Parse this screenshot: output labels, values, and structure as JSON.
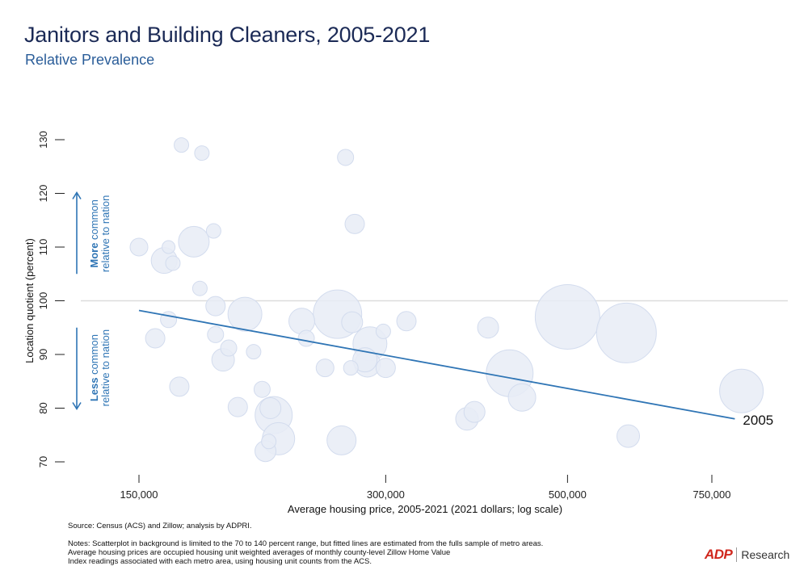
{
  "header": {
    "title": "Janitors and Building Cleaners, 2005-2021",
    "subtitle": "Relative Prevalence"
  },
  "chart_data": {
    "type": "scatter",
    "xlabel": "Average housing price, 2005-2021 (2021 dollars; log scale)",
    "ylabel": "Location quotient (percent)",
    "x_scale": "log",
    "xlim": [
      120000,
      950000
    ],
    "ylim": [
      68,
      134
    ],
    "x_ticks": [
      150000,
      300000,
      500000,
      750000
    ],
    "x_tick_labels": [
      "150,000",
      "300,000",
      "500,000",
      "750,000"
    ],
    "y_ticks": [
      70,
      80,
      90,
      100,
      110,
      120,
      130
    ],
    "y_tick_labels": [
      "70",
      "80",
      "90",
      "100",
      "110",
      "120",
      "130"
    ],
    "reference_line_y": 100,
    "grid": false,
    "annotations": {
      "more": {
        "bold": "More",
        "rest": "common",
        "line2": "relative to nation"
      },
      "less": {
        "bold": "Less",
        "rest": "common",
        "line2": "relative to nation"
      }
    },
    "fitted_line": {
      "label": "2005",
      "x": [
        150000,
        800000
      ],
      "y": [
        98.2,
        78.0
      ],
      "color": "#2f75b5"
    },
    "points": [
      {
        "x": 150000,
        "y": 110,
        "size": 11
      },
      {
        "x": 157000,
        "y": 93,
        "size": 12
      },
      {
        "x": 161000,
        "y": 107.5,
        "size": 16
      },
      {
        "x": 163000,
        "y": 96.5,
        "size": 10
      },
      {
        "x": 163000,
        "y": 110,
        "size": 8
      },
      {
        "x": 165000,
        "y": 107,
        "size": 9
      },
      {
        "x": 168000,
        "y": 84,
        "size": 12
      },
      {
        "x": 169000,
        "y": 129,
        "size": 9
      },
      {
        "x": 175000,
        "y": 111,
        "size": 19
      },
      {
        "x": 178000,
        "y": 102.3,
        "size": 9
      },
      {
        "x": 179000,
        "y": 127.5,
        "size": 9
      },
      {
        "x": 185000,
        "y": 113,
        "size": 9
      },
      {
        "x": 186000,
        "y": 99,
        "size": 12
      },
      {
        "x": 186000,
        "y": 93.7,
        "size": 10
      },
      {
        "x": 190000,
        "y": 89,
        "size": 14
      },
      {
        "x": 193000,
        "y": 91.2,
        "size": 10
      },
      {
        "x": 198000,
        "y": 80.2,
        "size": 12
      },
      {
        "x": 202000,
        "y": 97.5,
        "size": 21
      },
      {
        "x": 207000,
        "y": 90.5,
        "size": 9
      },
      {
        "x": 212000,
        "y": 83.5,
        "size": 10
      },
      {
        "x": 214000,
        "y": 72,
        "size": 13
      },
      {
        "x": 217000,
        "y": 80,
        "size": 13
      },
      {
        "x": 219000,
        "y": 78.7,
        "size": 23
      },
      {
        "x": 222000,
        "y": 74.3,
        "size": 20
      },
      {
        "x": 216000,
        "y": 73.8,
        "size": 9
      },
      {
        "x": 237000,
        "y": 96.2,
        "size": 16
      },
      {
        "x": 240000,
        "y": 93,
        "size": 10
      },
      {
        "x": 253000,
        "y": 87.5,
        "size": 11
      },
      {
        "x": 262000,
        "y": 97.5,
        "size": 30
      },
      {
        "x": 265000,
        "y": 74,
        "size": 18
      },
      {
        "x": 268000,
        "y": 126.7,
        "size": 10
      },
      {
        "x": 273000,
        "y": 96,
        "size": 13
      },
      {
        "x": 275000,
        "y": 114.3,
        "size": 12
      },
      {
        "x": 272000,
        "y": 87.5,
        "size": 9
      },
      {
        "x": 283000,
        "y": 89,
        "size": 15
      },
      {
        "x": 287000,
        "y": 92,
        "size": 21
      },
      {
        "x": 285000,
        "y": 88.2,
        "size": 16
      },
      {
        "x": 298000,
        "y": 94.3,
        "size": 9
      },
      {
        "x": 300000,
        "y": 87.5,
        "size": 12
      },
      {
        "x": 318000,
        "y": 96.2,
        "size": 12
      },
      {
        "x": 377000,
        "y": 78,
        "size": 14
      },
      {
        "x": 385000,
        "y": 79.3,
        "size": 13
      },
      {
        "x": 400000,
        "y": 95,
        "size": 13
      },
      {
        "x": 425000,
        "y": 86.5,
        "size": 29
      },
      {
        "x": 440000,
        "y": 82,
        "size": 17
      },
      {
        "x": 500000,
        "y": 97,
        "size": 40
      },
      {
        "x": 590000,
        "y": 94,
        "size": 37
      },
      {
        "x": 593000,
        "y": 74.8,
        "size": 14
      },
      {
        "x": 815000,
        "y": 83.2,
        "size": 27
      }
    ]
  },
  "footer": {
    "source": "Source: Census (ACS) and Zillow; analysis by ADPRI.",
    "notes": [
      "Notes: Scatterplot in background is limited to the 70 to 140 percent range, but fitted lines are estimated from the fulls sample of metro areas.",
      "Average housing prices are occupied housing unit weighted averages of monthly county-level Zillow Home Value",
      "Index readings associated with each metro area, using housing unit counts from the ACS."
    ],
    "brand_logo": "ADP",
    "brand_text": "Research"
  },
  "colors": {
    "title": "#1b2a56",
    "subtitle": "#2a5d99",
    "bubble_fill": "#e7ecf6",
    "bubble_stroke": "#d3dcee",
    "line": "#2f75b5",
    "annotation": "#2f75b5",
    "reference_line": "#dddddd"
  }
}
